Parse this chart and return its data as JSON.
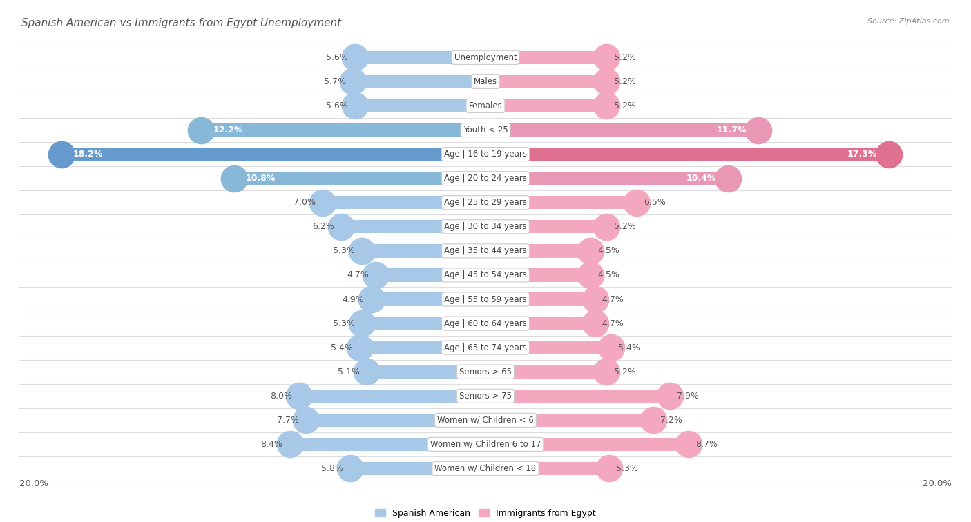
{
  "title": "Spanish American vs Immigrants from Egypt Unemployment",
  "source": "Source: ZipAtlas.com",
  "categories": [
    "Unemployment",
    "Males",
    "Females",
    "Youth < 25",
    "Age | 16 to 19 years",
    "Age | 20 to 24 years",
    "Age | 25 to 29 years",
    "Age | 30 to 34 years",
    "Age | 35 to 44 years",
    "Age | 45 to 54 years",
    "Age | 55 to 59 years",
    "Age | 60 to 64 years",
    "Age | 65 to 74 years",
    "Seniors > 65",
    "Seniors > 75",
    "Women w/ Children < 6",
    "Women w/ Children 6 to 17",
    "Women w/ Children < 18"
  ],
  "spanish_american": [
    5.6,
    5.7,
    5.6,
    12.2,
    18.2,
    10.8,
    7.0,
    6.2,
    5.3,
    4.7,
    4.9,
    5.3,
    5.4,
    5.1,
    8.0,
    7.7,
    8.4,
    5.8
  ],
  "immigrants_egypt": [
    5.2,
    5.2,
    5.2,
    11.7,
    17.3,
    10.4,
    6.5,
    5.2,
    4.5,
    4.5,
    4.7,
    4.7,
    5.4,
    5.2,
    7.9,
    7.2,
    8.7,
    5.3
  ],
  "color_spanish": "#a8c8e8",
  "color_egypt": "#f4a8c0",
  "color_spanish_dark": "#7aaed4",
  "color_egypt_dark": "#e8809c",
  "background_color": "#ffffff",
  "row_alt_color": "#f0f0f0",
  "row_sep_color": "#dddddd",
  "xlim": 20.0,
  "bar_height": 0.55,
  "label_fontsize": 9.0,
  "cat_fontsize": 8.5,
  "title_fontsize": 11,
  "source_fontsize": 8,
  "legend_fontsize": 9
}
